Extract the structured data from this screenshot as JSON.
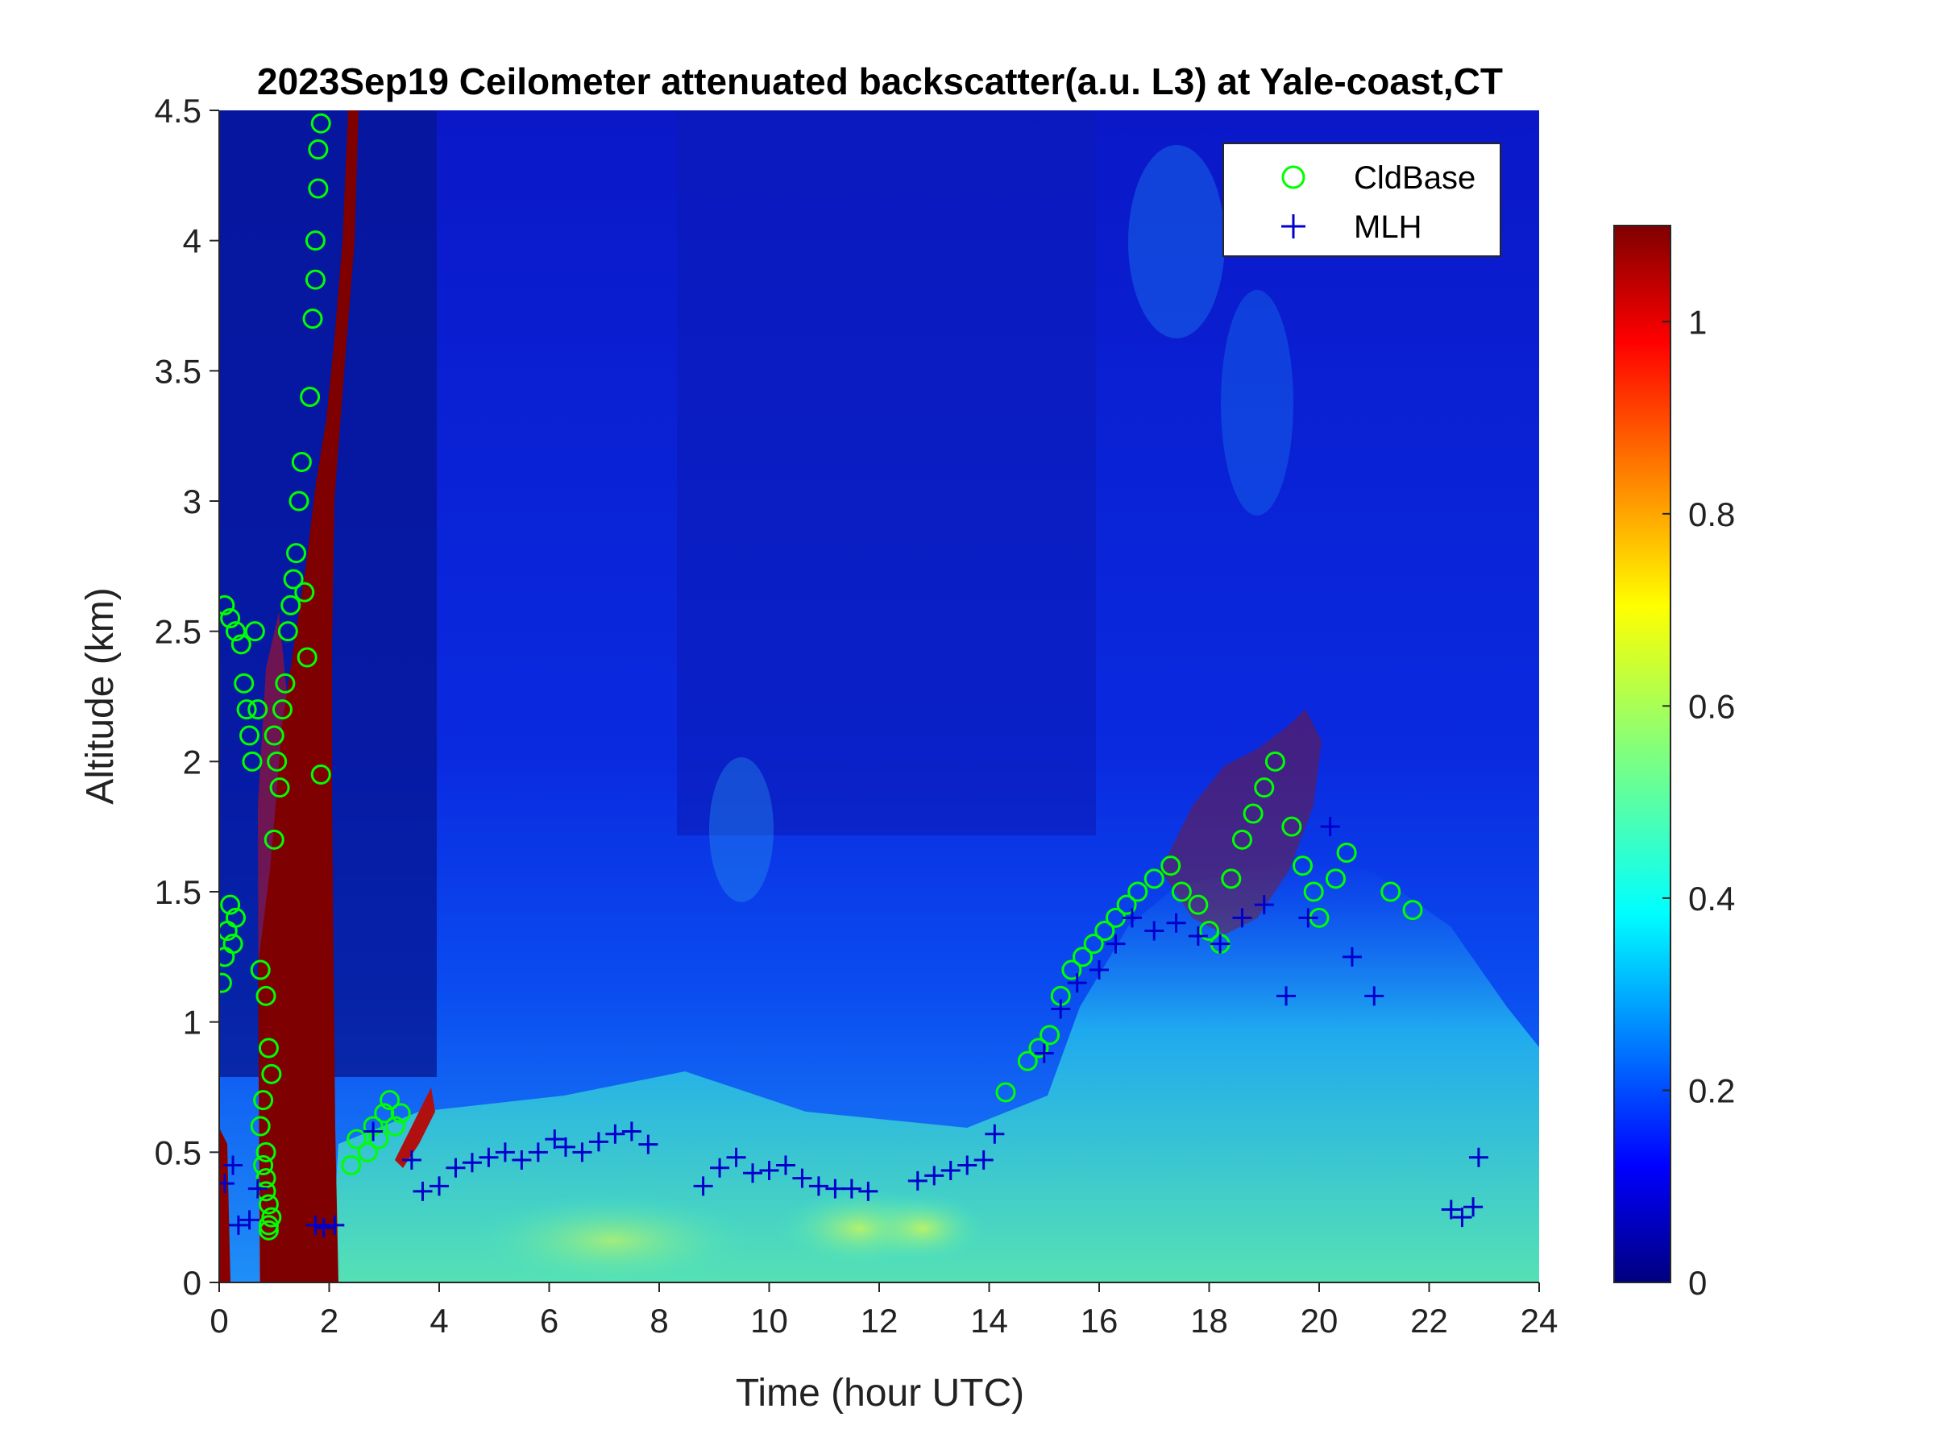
{
  "chart_data": {
    "type": "heatmap",
    "title": "2023Sep19 Ceilometer attenuated backscatter(a.u. L3) at Yale-coast,CT",
    "xlabel": "Time (hour UTC)",
    "ylabel": "Altitude (km)",
    "xlim": [
      0,
      24
    ],
    "ylim": [
      0,
      4.5
    ],
    "x_ticks": [
      0,
      2,
      4,
      6,
      8,
      10,
      12,
      14,
      16,
      18,
      20,
      22,
      24
    ],
    "x_tick_labels": [
      "0",
      "2",
      "4",
      "6",
      "8",
      "10",
      "12",
      "14",
      "16",
      "18",
      "20",
      "22",
      "24"
    ],
    "y_ticks": [
      0,
      0.5,
      1,
      1.5,
      2,
      2.5,
      3,
      3.5,
      4,
      4.5
    ],
    "y_tick_labels": [
      "0",
      "0.5",
      "1",
      "1.5",
      "2",
      "2.5",
      "3",
      "3.5",
      "4",
      "4.5"
    ],
    "colorbar": {
      "colormap": "jet",
      "range": [
        0,
        1.1
      ],
      "ticks": [
        0,
        0.2,
        0.4,
        0.6,
        0.8,
        1
      ],
      "tick_labels": [
        "0",
        "0.2",
        "0.4",
        "0.6",
        "0.8",
        "1"
      ]
    },
    "legend": {
      "placement": "top-right",
      "entries": [
        {
          "label": "CldBase",
          "marker": "circle",
          "color": "#00ff00"
        },
        {
          "label": "MLH",
          "marker": "plus",
          "color": "#0000cc"
        }
      ]
    },
    "series": [
      {
        "name": "CldBase",
        "x": [
          0.05,
          0.1,
          0.15,
          0.2,
          0.25,
          0.3,
          0.1,
          0.2,
          0.3,
          0.4,
          0.45,
          0.5,
          0.55,
          0.6,
          0.65,
          0.7,
          0.75,
          0.85,
          0.9,
          0.95,
          1.0,
          1.05,
          1.1,
          1.15,
          1.2,
          1.25,
          1.3,
          1.35,
          1.4,
          1.45,
          1.5,
          1.55,
          1.6,
          1.65,
          1.7,
          1.75,
          1.75,
          1.8,
          1.8,
          1.85,
          1.85,
          0.75,
          0.8,
          0.85,
          0.85,
          0.9,
          0.9,
          0.95,
          1.0,
          0.8,
          0.85,
          0.9,
          2.4,
          2.5,
          2.7,
          2.8,
          2.9,
          3.0,
          3.1,
          3.2,
          3.3,
          14.3,
          14.7,
          14.9,
          15.1,
          15.3,
          15.5,
          15.7,
          15.9,
          16.1,
          16.3,
          16.5,
          16.7,
          17.0,
          17.3,
          17.5,
          17.8,
          18.0,
          18.2,
          18.4,
          18.6,
          18.8,
          19.0,
          19.2,
          19.5,
          19.7,
          19.9,
          20.0,
          20.3,
          20.5,
          21.3,
          21.7
        ],
        "y": [
          1.15,
          1.25,
          1.35,
          1.45,
          1.3,
          1.4,
          2.6,
          2.55,
          2.5,
          2.45,
          2.3,
          2.2,
          2.1,
          2.0,
          2.5,
          2.2,
          1.2,
          1.1,
          0.9,
          0.8,
          2.1,
          2.0,
          1.9,
          2.2,
          2.3,
          2.5,
          2.6,
          2.7,
          2.8,
          3.0,
          3.15,
          2.65,
          2.4,
          3.4,
          3.7,
          3.85,
          4.0,
          4.2,
          4.35,
          4.45,
          1.95,
          0.6,
          0.7,
          0.5,
          0.4,
          0.3,
          0.2,
          0.25,
          1.7,
          0.45,
          0.35,
          0.22,
          0.45,
          0.55,
          0.5,
          0.6,
          0.55,
          0.65,
          0.7,
          0.6,
          0.65,
          0.73,
          0.85,
          0.9,
          0.95,
          1.1,
          1.2,
          1.25,
          1.3,
          1.35,
          1.4,
          1.45,
          1.5,
          1.55,
          1.6,
          1.5,
          1.45,
          1.35,
          1.3,
          1.55,
          1.7,
          1.8,
          1.9,
          2.0,
          1.75,
          1.6,
          1.5,
          1.4,
          1.55,
          1.65,
          1.5,
          1.43
        ]
      },
      {
        "name": "MLH",
        "x": [
          0.1,
          0.25,
          0.35,
          0.55,
          0.7,
          1.75,
          1.9,
          2.1,
          2.8,
          3.5,
          3.7,
          4.0,
          4.3,
          4.6,
          4.9,
          5.2,
          5.5,
          5.8,
          6.1,
          6.3,
          6.6,
          6.9,
          7.2,
          7.5,
          7.8,
          8.8,
          9.1,
          9.4,
          9.7,
          10.0,
          10.3,
          10.6,
          10.9,
          11.2,
          11.5,
          11.8,
          12.7,
          13.0,
          13.3,
          13.6,
          13.9,
          14.1,
          15.0,
          15.3,
          15.6,
          16.0,
          16.3,
          16.6,
          17.0,
          17.4,
          17.8,
          18.2,
          18.6,
          19.0,
          19.4,
          19.8,
          20.2,
          20.6,
          21.0,
          22.4,
          22.6,
          22.8,
          22.9
        ],
        "y": [
          0.38,
          0.45,
          0.22,
          0.24,
          0.36,
          0.22,
          0.21,
          0.22,
          0.58,
          0.47,
          0.35,
          0.37,
          0.44,
          0.46,
          0.48,
          0.5,
          0.47,
          0.5,
          0.55,
          0.52,
          0.5,
          0.54,
          0.57,
          0.58,
          0.53,
          0.37,
          0.44,
          0.48,
          0.42,
          0.43,
          0.45,
          0.4,
          0.37,
          0.36,
          0.36,
          0.35,
          0.39,
          0.41,
          0.43,
          0.45,
          0.47,
          0.57,
          0.88,
          1.05,
          1.15,
          1.2,
          1.3,
          1.4,
          1.35,
          1.38,
          1.33,
          1.3,
          1.4,
          1.45,
          1.1,
          1.4,
          1.75,
          1.25,
          1.1,
          0.28,
          0.25,
          0.29,
          0.48
        ]
      }
    ]
  }
}
